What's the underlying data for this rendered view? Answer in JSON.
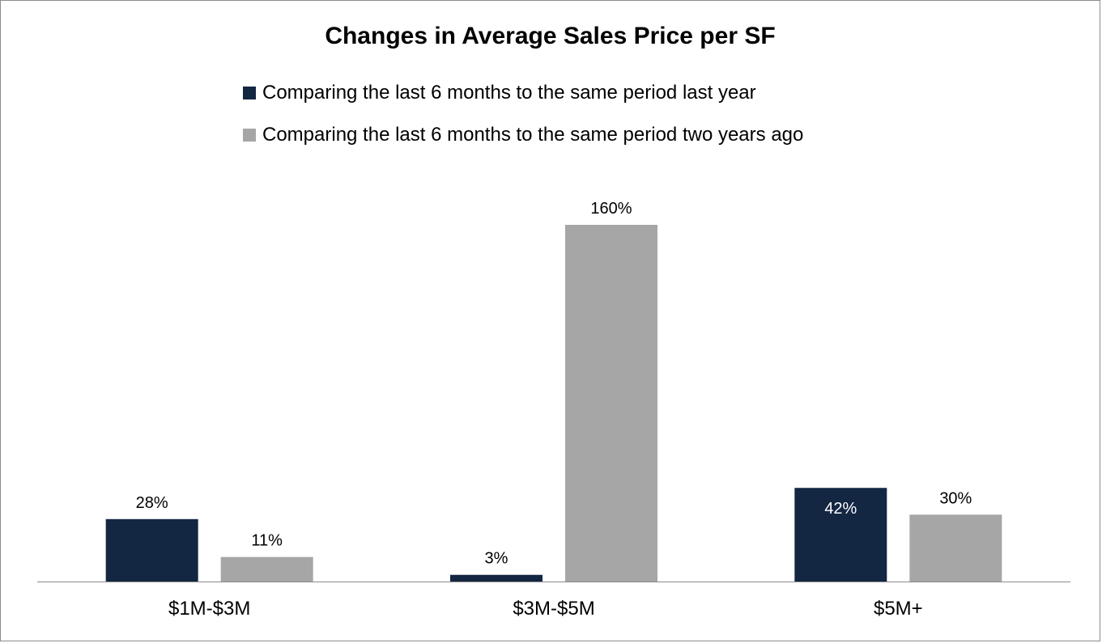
{
  "chart_data": {
    "type": "bar",
    "title": "Changes in Average Sales Price per SF",
    "categories": [
      "$1M-$3M",
      "$3M-$5M",
      "$5M+"
    ],
    "series": [
      {
        "name": "Comparing the last 6 months to the same period last year",
        "color": "#132642",
        "values": [
          28,
          3,
          42
        ],
        "labels": [
          "28%",
          "3%",
          "42%"
        ]
      },
      {
        "name": "Comparing the last 6 months to the same period two years ago",
        "color": "#a6a6a6",
        "values": [
          11,
          160,
          30
        ],
        "labels": [
          "11%",
          "160%",
          "30%"
        ]
      }
    ],
    "ylim": [
      0,
      160
    ],
    "grid": false,
    "legend": "top"
  }
}
